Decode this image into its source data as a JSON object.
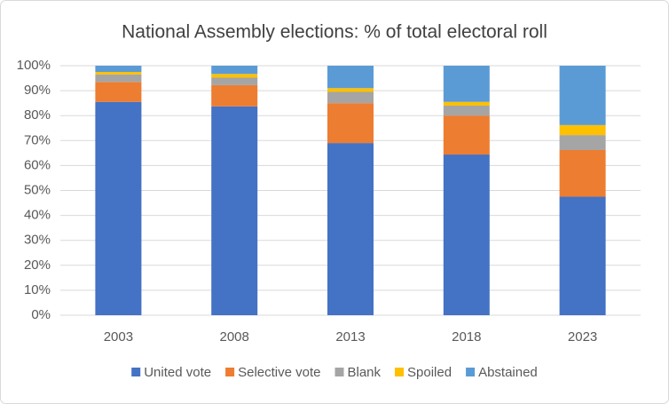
{
  "chart_data": {
    "type": "stacked-bar",
    "title": "National Assembly elections: % of total electoral roll",
    "categories": [
      "2003",
      "2008",
      "2013",
      "2018",
      "2023"
    ],
    "series": [
      {
        "name": "United vote",
        "color": "#4472c4",
        "values": [
          85.5,
          83.7,
          69,
          64.4,
          47.5
        ]
      },
      {
        "name": "Selective vote",
        "color": "#ed7d31",
        "values": [
          8,
          8.5,
          16,
          15.6,
          18.7
        ]
      },
      {
        "name": "Blank",
        "color": "#a5a5a5",
        "values": [
          3,
          3,
          4.5,
          4,
          6
        ]
      },
      {
        "name": "Spoiled",
        "color": "#ffc000",
        "values": [
          1,
          1.5,
          1.5,
          1.5,
          4
        ]
      },
      {
        "name": "Abstained",
        "color": "#5b9bd5",
        "values": [
          2.5,
          3.3,
          9,
          14.5,
          23.8
        ]
      }
    ],
    "ylim": [
      0,
      100
    ],
    "yticks": [
      {
        "value": 0,
        "label": "0%"
      },
      {
        "value": 10,
        "label": "10%"
      },
      {
        "value": 20,
        "label": "20%"
      },
      {
        "value": 30,
        "label": "30%"
      },
      {
        "value": 40,
        "label": "40%"
      },
      {
        "value": 50,
        "label": "50%"
      },
      {
        "value": 60,
        "label": "60%"
      },
      {
        "value": 70,
        "label": "70%"
      },
      {
        "value": 80,
        "label": "80%"
      },
      {
        "value": 90,
        "label": "90%"
      },
      {
        "value": 100,
        "label": "100%"
      }
    ],
    "grid": true,
    "legend": "bottom"
  }
}
